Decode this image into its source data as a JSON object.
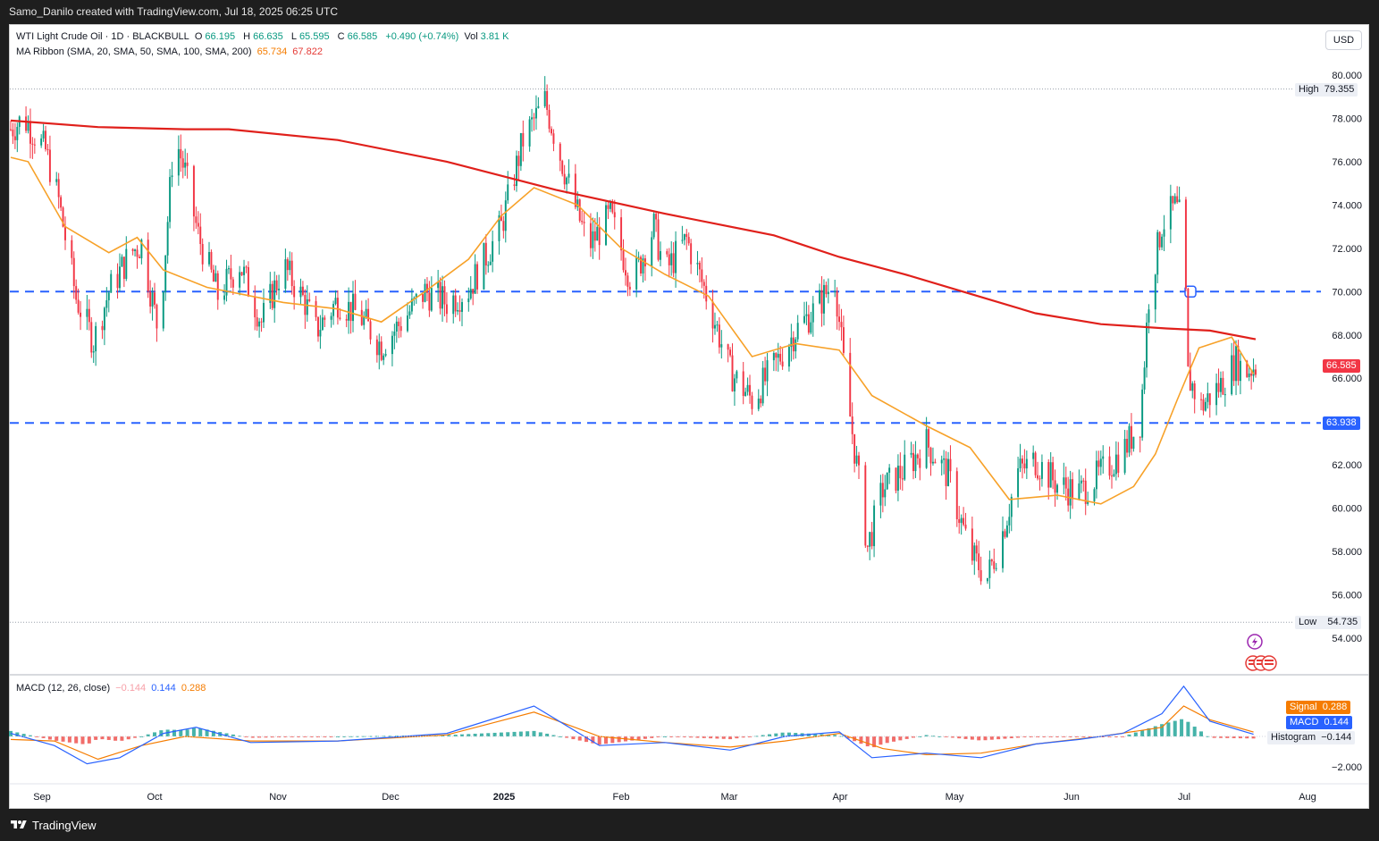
{
  "header": {
    "attribution": "Samo_Danilo created with TradingView.com, Jul 18, 2025 06:25 UTC"
  },
  "footer": {
    "brand": "TradingView"
  },
  "legend": {
    "symbol": "WTI Light Crude Oil · 1D · BLACKBULL",
    "open_label": "O",
    "open": "66.195",
    "high_label": "H",
    "high": "66.635",
    "low_label": "L",
    "low": "65.595",
    "close_label": "C",
    "close": "66.585",
    "change": "+0.490 (+0.74%)",
    "vol_label": "Vol",
    "vol": "3.81 K",
    "ma_title": "MA Ribbon (SMA, 20, SMA, 50, SMA, 100, SMA, 200)",
    "ma_fast": "65.734",
    "ma_slow": "67.822",
    "macd_title": "MACD (12, 26, close)",
    "macd_hist": "−0.144",
    "macd_line": "0.144",
    "macd_signal": "0.288"
  },
  "currency_button": "USD",
  "price_axis": {
    "ticks": [
      "80.000",
      "78.000",
      "76.000",
      "74.000",
      "72.000",
      "70.000",
      "68.000",
      "66.000",
      "62.000",
      "60.000",
      "58.000",
      "56.000",
      "54.000"
    ],
    "high_label": "High",
    "high_value": "79.355",
    "low_label": "Low",
    "low_value": "54.735",
    "current_price": "66.585",
    "support_price": "63.938"
  },
  "macd_axis": {
    "tick": "−2.000",
    "signal_label": "Signal",
    "signal_value": "0.288",
    "macd_label": "MACD",
    "macd_value": "0.144",
    "hist_label": "Histogram",
    "hist_value": "−0.144"
  },
  "time_axis": [
    "Sep",
    "Oct",
    "Nov",
    "Dec",
    "2025",
    "Feb",
    "Mar",
    "Apr",
    "May",
    "Jun",
    "Jul",
    "Aug"
  ],
  "colors": {
    "up": "#089981",
    "down": "#f23645",
    "ma_fast": "#f7a128",
    "ma_slow": "#e0201b",
    "hline": "#2962ff",
    "macd": "#2962ff",
    "signal": "#f57c00"
  },
  "chart_data": {
    "type": "candlestick",
    "title": "WTI Light Crude Oil · 1D · BLACKBULL",
    "ylim": [
      53.5,
      80.5
    ],
    "horizontal_lines": [
      70.0,
      63.938
    ],
    "series": [
      {
        "name": "MA Ribbon SMA 20",
        "points": [
          [
            0,
            76.2
          ],
          [
            8,
            76.0
          ],
          [
            25,
            73.0
          ],
          [
            45,
            71.8
          ],
          [
            58,
            72.5
          ],
          [
            70,
            71.0
          ],
          [
            90,
            70.2
          ],
          [
            110,
            69.8
          ],
          [
            125,
            69.5
          ],
          [
            150,
            69.2
          ],
          [
            170,
            68.6
          ],
          [
            190,
            70.0
          ],
          [
            210,
            71.5
          ],
          [
            225,
            73.5
          ],
          [
            240,
            74.8
          ],
          [
            260,
            74.0
          ],
          [
            280,
            72.0
          ],
          [
            300,
            70.8
          ],
          [
            320,
            69.8
          ],
          [
            340,
            67.0
          ],
          [
            360,
            67.6
          ],
          [
            380,
            67.3
          ],
          [
            395,
            65.2
          ],
          [
            420,
            63.8
          ],
          [
            440,
            62.8
          ],
          [
            458,
            60.4
          ],
          [
            480,
            60.6
          ],
          [
            500,
            60.2
          ],
          [
            515,
            61.0
          ],
          [
            525,
            62.5
          ],
          [
            535,
            65.0
          ],
          [
            545,
            67.4
          ],
          [
            560,
            67.9
          ],
          [
            570,
            66.2
          ]
        ]
      },
      {
        "name": "MA Ribbon SMA 200",
        "points": [
          [
            0,
            77.9
          ],
          [
            40,
            77.6
          ],
          [
            80,
            77.5
          ],
          [
            100,
            77.5
          ],
          [
            150,
            77.0
          ],
          [
            200,
            76.0
          ],
          [
            250,
            74.7
          ],
          [
            300,
            73.6
          ],
          [
            350,
            72.6
          ],
          [
            380,
            71.6
          ],
          [
            410,
            70.8
          ],
          [
            440,
            69.9
          ],
          [
            470,
            69.0
          ],
          [
            500,
            68.5
          ],
          [
            530,
            68.3
          ],
          [
            550,
            68.2
          ],
          [
            571,
            67.8
          ]
        ]
      },
      {
        "name": "MACD",
        "points": [
          [
            0,
            0.2
          ],
          [
            20,
            -0.6
          ],
          [
            35,
            -1.8
          ],
          [
            50,
            -1.4
          ],
          [
            70,
            0.2
          ],
          [
            85,
            0.6
          ],
          [
            110,
            -0.4
          ],
          [
            150,
            -0.3
          ],
          [
            200,
            0.2
          ],
          [
            240,
            2.0
          ],
          [
            270,
            -0.6
          ],
          [
            300,
            -0.4
          ],
          [
            330,
            -0.9
          ],
          [
            355,
            0.0
          ],
          [
            380,
            0.3
          ],
          [
            395,
            -1.4
          ],
          [
            420,
            -1.1
          ],
          [
            445,
            -1.4
          ],
          [
            470,
            -0.5
          ],
          [
            490,
            -0.2
          ],
          [
            510,
            0.2
          ],
          [
            528,
            1.5
          ],
          [
            538,
            3.3
          ],
          [
            550,
            1.0
          ],
          [
            570,
            0.14
          ]
        ]
      },
      {
        "name": "Signal",
        "points": [
          [
            0,
            -0.2
          ],
          [
            20,
            -0.3
          ],
          [
            40,
            -1.5
          ],
          [
            60,
            -0.6
          ],
          [
            80,
            0.0
          ],
          [
            110,
            -0.3
          ],
          [
            150,
            -0.3
          ],
          [
            200,
            0.1
          ],
          [
            240,
            1.6
          ],
          [
            270,
            0.0
          ],
          [
            300,
            -0.4
          ],
          [
            330,
            -0.7
          ],
          [
            355,
            -0.3
          ],
          [
            380,
            0.2
          ],
          [
            400,
            -0.8
          ],
          [
            420,
            -1.2
          ],
          [
            445,
            -1.1
          ],
          [
            470,
            -0.5
          ],
          [
            500,
            0.0
          ],
          [
            528,
            0.6
          ],
          [
            538,
            2.0
          ],
          [
            550,
            1.1
          ],
          [
            570,
            0.29
          ]
        ]
      }
    ]
  }
}
